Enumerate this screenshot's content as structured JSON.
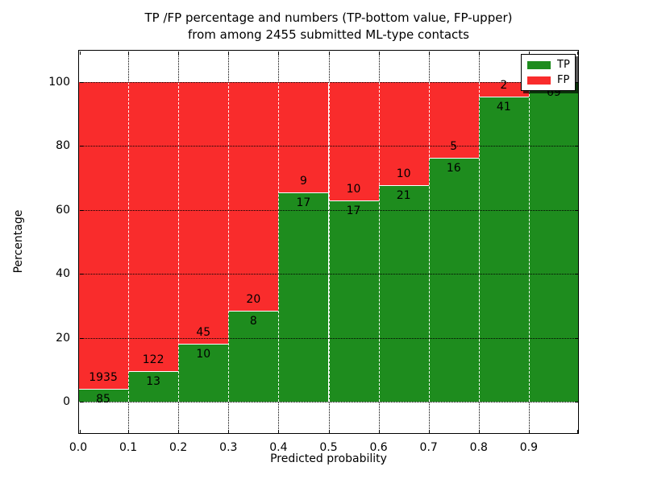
{
  "title": {
    "line1": "TP /FP percentage and numbers (TP-bottom value, FP-upper)",
    "line2": "from among 2455 submitted ML-type contacts"
  },
  "axes": {
    "xlabel": "Predicted probability",
    "ylabel": "Percentage",
    "x_tick_labels": [
      "0.0",
      "0.1",
      "0.2",
      "0.3",
      "0.4",
      "0.5",
      "0.6",
      "0.7",
      "0.8",
      "0.9"
    ],
    "y_tick_labels": [
      "0",
      "20",
      "40",
      "60",
      "80",
      "100"
    ]
  },
  "legend": {
    "position": "upper right",
    "items": [
      {
        "label": "TP",
        "color": "#1e8c1e"
      },
      {
        "label": "FP",
        "color": "#f92c2c"
      }
    ]
  },
  "chart_data": {
    "type": "bar",
    "stacked": true,
    "normalized_to_percent": true,
    "title": "TP /FP percentage and numbers (TP-bottom value, FP-upper)\nfrom among 2455 submitted ML-type contacts",
    "xlabel": "Predicted probability",
    "ylabel": "Percentage",
    "total_contacts": 2455,
    "bin_edges": [
      0.0,
      0.1,
      0.2,
      0.3,
      0.4,
      0.5,
      0.6,
      0.7,
      0.8,
      0.9,
      1.0
    ],
    "categories": [
      "0.0-0.1",
      "0.1-0.2",
      "0.2-0.3",
      "0.3-0.4",
      "0.4-0.5",
      "0.5-0.6",
      "0.6-0.7",
      "0.7-0.8",
      "0.8-0.9",
      "0.9-1.0"
    ],
    "series": [
      {
        "name": "TP",
        "color": "#1e8c1e",
        "counts": [
          85,
          13,
          10,
          8,
          17,
          17,
          21,
          16,
          41,
          69
        ],
        "labels": [
          "85",
          "13",
          "10",
          "8",
          "17",
          "17",
          "21",
          "16",
          "41",
          "69"
        ]
      },
      {
        "name": "FP",
        "color": "#f92c2c",
        "counts": [
          1935,
          122,
          45,
          20,
          9,
          10,
          10,
          5,
          2,
          0
        ],
        "labels": [
          "1935",
          "122",
          "45",
          "20",
          "9",
          "10",
          "10",
          "5",
          "2",
          ""
        ]
      }
    ],
    "tp_percent": [
      4.2,
      9.6,
      18.2,
      28.6,
      65.4,
      63.0,
      67.7,
      76.2,
      95.3,
      100.0
    ],
    "xlim": [
      0.0,
      1.0
    ],
    "ylim": [
      -10,
      110
    ],
    "x_ticks": [
      0.0,
      0.1,
      0.2,
      0.3,
      0.4,
      0.5,
      0.6,
      0.7,
      0.8,
      0.9
    ],
    "y_ticks": [
      0,
      20,
      40,
      60,
      80,
      100
    ],
    "grid": true,
    "grid_style": "dotted",
    "legend_position": "upper right"
  }
}
